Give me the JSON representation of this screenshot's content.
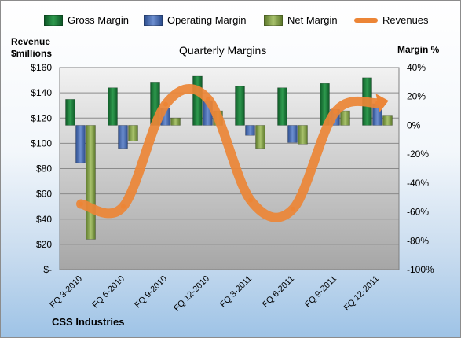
{
  "company": "CSS Industries",
  "chart_data": {
    "type": "bar",
    "title": "Quarterly Margins",
    "y_left_label_line1": "Revenue",
    "y_left_label_line2": "$millions",
    "y_right_label": "Margin %",
    "categories": [
      "FQ 3-2010",
      "FQ 6-2010",
      "FQ 9-2010",
      "FQ 12-2010",
      "FQ 3-2011",
      "FQ 6-2011",
      "FQ 9-2011",
      "FQ 12-2011"
    ],
    "y_left_ticks": [
      "$-",
      "$20",
      "$40",
      "$60",
      "$80",
      "$100",
      "$120",
      "$140",
      "$160"
    ],
    "y_left_range": [
      0,
      160
    ],
    "y_right_ticks": [
      "-100%",
      "-80%",
      "-60%",
      "-40%",
      "-20%",
      "0%",
      "20%",
      "40%"
    ],
    "y_right_range": [
      -100,
      40
    ],
    "legend_position": "top",
    "series": [
      {
        "name": "Gross Margin",
        "axis": "right",
        "color": "#1e7a3c",
        "values": [
          18,
          26,
          30,
          34,
          27,
          26,
          29,
          33
        ]
      },
      {
        "name": "Operating Margin",
        "axis": "right",
        "color": "#4a6fb5",
        "values": [
          -26,
          -16,
          12,
          17,
          -7,
          -12,
          11,
          15
        ]
      },
      {
        "name": "Net Margin",
        "axis": "right",
        "color": "#7f9a48",
        "values": [
          -79,
          -11,
          5,
          10,
          -16,
          -13,
          10,
          7
        ]
      },
      {
        "name": "Revenues",
        "axis": "left",
        "type": "line",
        "color": "#ec8536",
        "values": [
          52,
          50,
          131,
          135,
          55,
          48,
          125,
          132
        ]
      }
    ],
    "grid": true
  }
}
